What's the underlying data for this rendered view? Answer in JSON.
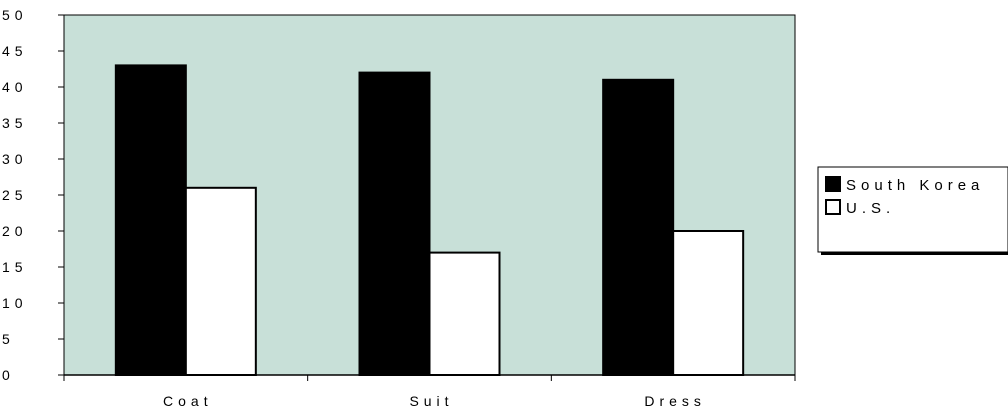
{
  "chart_data": {
    "type": "bar",
    "title": "",
    "xlabel": "",
    "ylabel": "",
    "categories": [
      "Coat",
      "Suit",
      "Dress"
    ],
    "series": [
      {
        "name": "South Korea",
        "values": [
          43,
          42,
          41
        ],
        "color": "#000000"
      },
      {
        "name": "U.S.",
        "values": [
          26,
          17,
          20
        ],
        "color": "#ffffff"
      }
    ],
    "ylim": [
      0,
      50
    ],
    "yticks": [
      0,
      5,
      10,
      15,
      20,
      25,
      30,
      35,
      40,
      45,
      50
    ],
    "grid": false,
    "legend_position": "right",
    "colors": {
      "plot_background": "#c8e0d8",
      "bar_outline": "#000000",
      "axis": "#000000"
    }
  }
}
